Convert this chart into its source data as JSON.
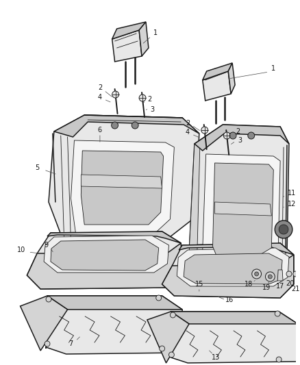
{
  "bg_color": "#ffffff",
  "line_color": "#1a1a1a",
  "fig_width": 4.38,
  "fig_height": 5.33,
  "dpi": 100,
  "lw_main": 1.1,
  "lw_inner": 0.6,
  "gray_fill": "#e8e8e8",
  "dark_fill": "#c8c8c8",
  "mid_fill": "#d4d4d4",
  "font_size": 7.0
}
